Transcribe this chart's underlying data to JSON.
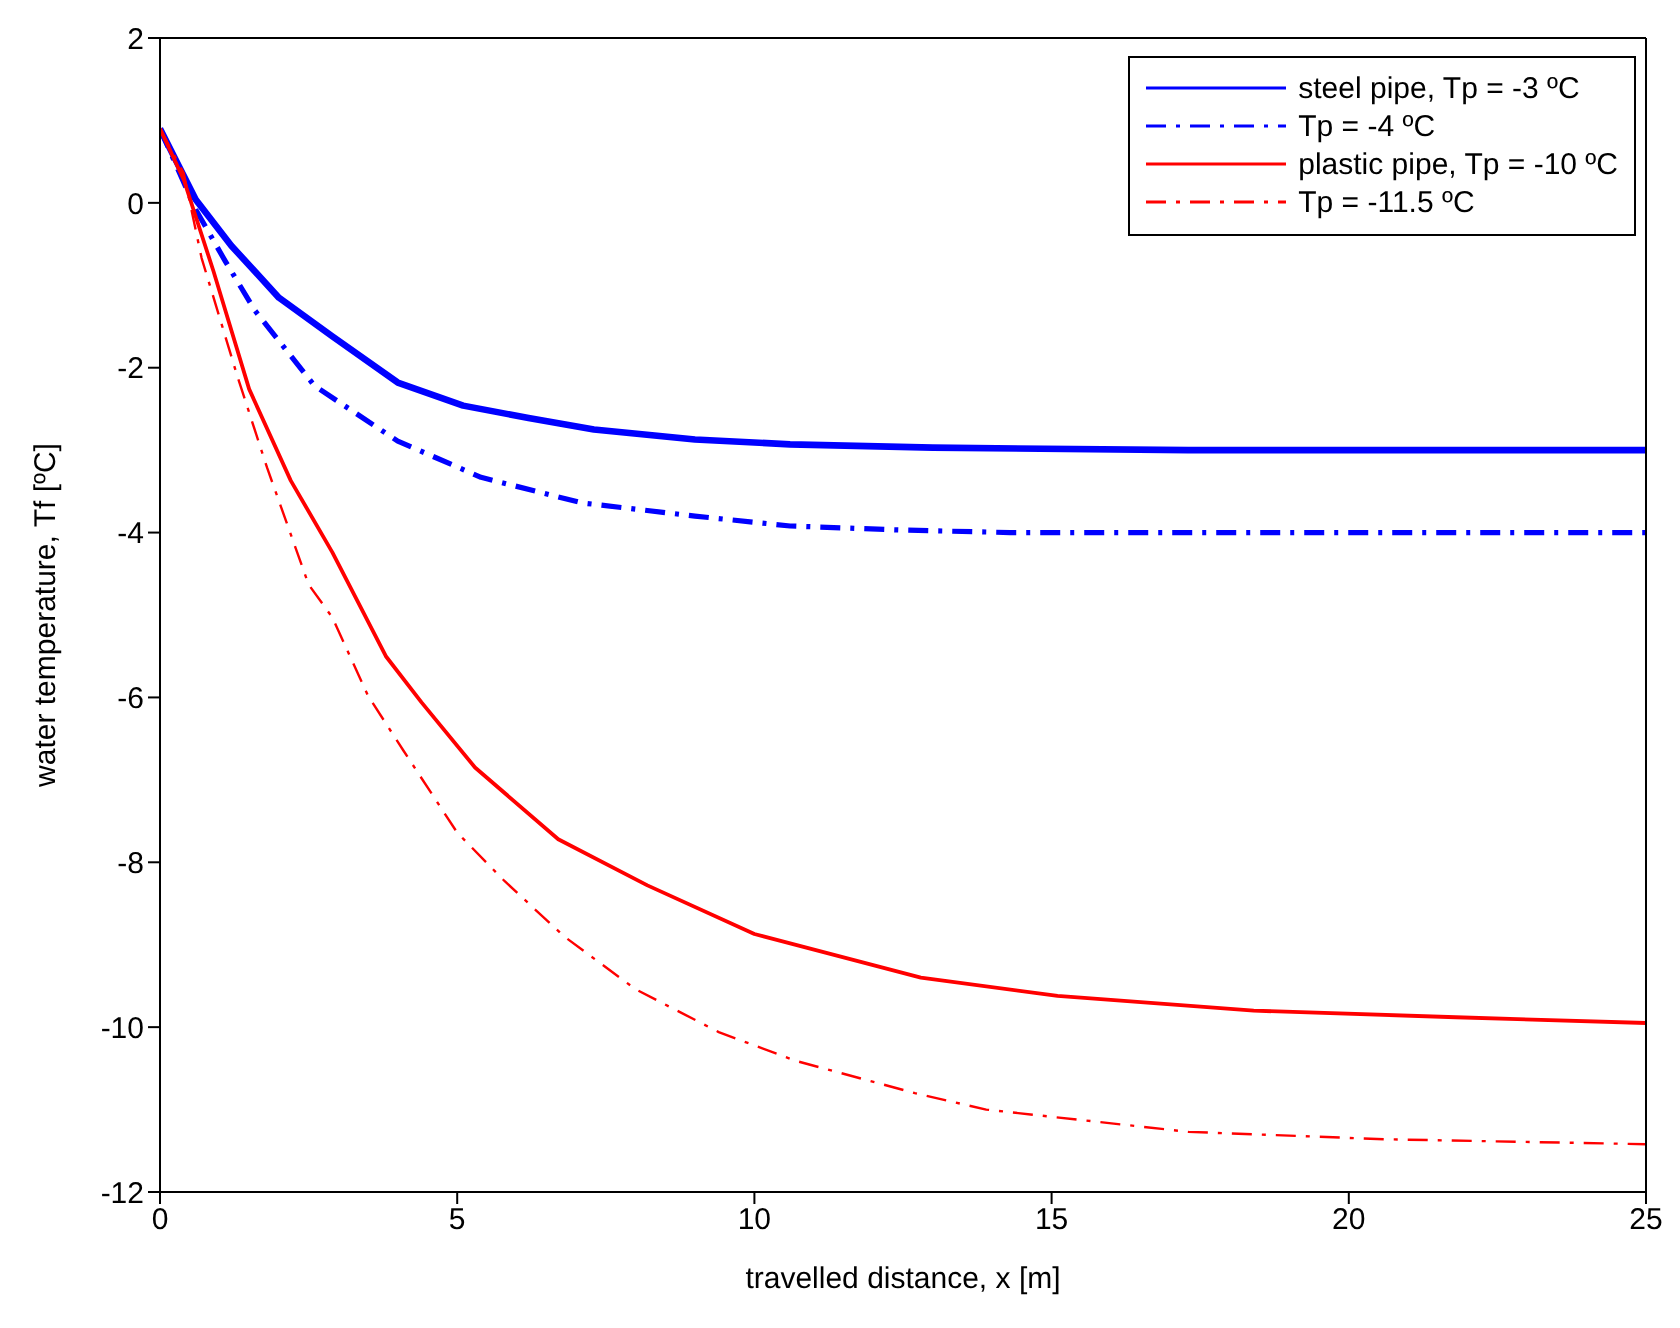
{
  "chart_data": {
    "type": "line",
    "xlabel": "travelled distance, x [m]",
    "ylabel": "water temperature, Tf [ºC]",
    "xlim": [
      0,
      25
    ],
    "xticks": [
      0,
      5,
      10,
      15,
      20,
      25
    ],
    "ylim": [
      -12,
      2
    ],
    "yticks": [
      -12,
      -10,
      -8,
      -6,
      -4,
      -2,
      0,
      2
    ],
    "grid": false,
    "legend": "top right",
    "marker": "none",
    "series": [
      {
        "name": "steel pipe, Tp = -3 ºC",
        "color": "#0000ff",
        "line_style": "solid",
        "x": [
          0,
          0.6,
          1.2,
          2,
          2.9,
          4,
          5.1,
          6.2,
          7.3,
          9,
          10.6,
          13,
          17.3,
          21,
          25
        ],
        "values": [
          0.9,
          0.04,
          -0.52,
          -1.15,
          -1.62,
          -2.18,
          -2.46,
          -2.61,
          -2.75,
          -2.87,
          -2.93,
          -2.97,
          -3,
          -3,
          -3
        ]
      },
      {
        "name": "Tp = -4 ºC",
        "color": "#0000ff",
        "line_style": "dashed",
        "x": [
          0,
          0.6,
          1.1,
          1.6,
          2.6,
          4,
          5.4,
          7.1,
          9,
          10.6,
          12.5,
          14.3,
          18,
          21,
          25
        ],
        "values": [
          0.9,
          -0.08,
          -0.71,
          -1.31,
          -2.22,
          -2.89,
          -3.33,
          -3.64,
          -3.8,
          -3.92,
          -3.97,
          -4,
          -4,
          -4,
          -4
        ]
      },
      {
        "name": "plastic pipe, Tp = -10 ºC",
        "color": "#ff0000",
        "line_style": "solid",
        "x": [
          0,
          0.4,
          0.9,
          1.5,
          2.2,
          2.9,
          3.8,
          4.4,
          5.3,
          6.7,
          8.2,
          10,
          12.8,
          15.1,
          18.4,
          21.8,
          25
        ],
        "values": [
          0.9,
          0.28,
          -0.83,
          -2.26,
          -3.37,
          -4.24,
          -5.5,
          -6.06,
          -6.85,
          -7.72,
          -8.28,
          -8.87,
          -9.4,
          -9.62,
          -9.8,
          -9.88,
          -9.95
        ]
      },
      {
        "name": "Tp = -11.5 ºC",
        "color": "#ff0000",
        "line_style": "dashed",
        "x": [
          0,
          0.4,
          0.7,
          1.3,
          1.8,
          2.5,
          2.9,
          3.5,
          4.1,
          5,
          5.8,
          6.8,
          8,
          9.4,
          10.7,
          12.7,
          13.9,
          17.3,
          20.6,
          25
        ],
        "values": [
          0.9,
          0.36,
          -0.67,
          -2.1,
          -3.21,
          -4.63,
          -5.03,
          -5.98,
          -6.65,
          -7.64,
          -8.23,
          -8.9,
          -9.54,
          -10.06,
          -10.41,
          -10.8,
          -11,
          -11.27,
          -11.36,
          -11.42
        ]
      }
    ]
  }
}
